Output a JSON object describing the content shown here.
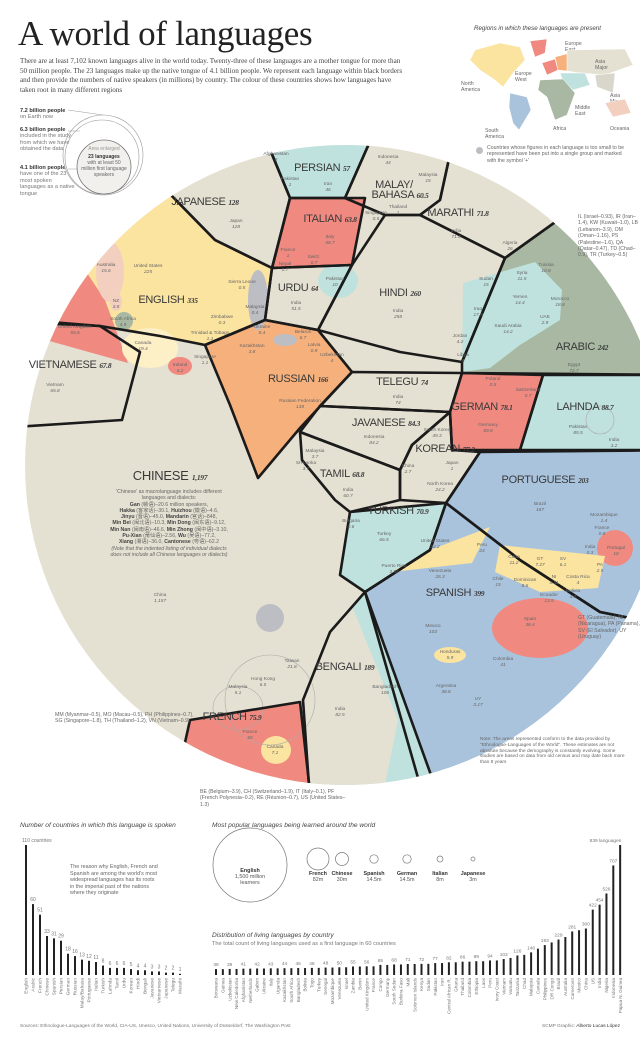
{
  "header": {
    "title": "A world of languages",
    "intro": "There are at least 7,102 known languages alive in the world today. Twenty-three of these languages are a mother tongue for more than 50 million people. The 23 languages make up the native tongue of 4.1 billion people. We represent each language within black borders and then provide the numbers of native speakers (in millions) by country. The colour of these countries shows how languages have taken root in many different regions"
  },
  "key": {
    "items": [
      {
        "bold": "7.2 billion people",
        "text": "on Earth now"
      },
      {
        "bold": "6.3 billion people",
        "text": "included in the study from which we have obtained the data"
      },
      {
        "bold": "4.1 billion people",
        "text": "have one of the 23 most spoken languages as a native tongue"
      }
    ],
    "enlarged": "Area enlarged",
    "inner_bold": "23 languages",
    "inner_text": "with at least 50 million first language speakers"
  },
  "map": {
    "title": "Regions in which these languages are present",
    "regions": [
      {
        "name": "North America",
        "color": "#fbe3a0"
      },
      {
        "name": "Europe West",
        "color": "#f08a80"
      },
      {
        "name": "Europe East",
        "color": "#f6b07c"
      },
      {
        "name": "Asia Major",
        "color": "#e5e1d2"
      },
      {
        "name": "Asia Minor",
        "color": "#d9d6cb"
      },
      {
        "name": "Middle East",
        "color": "#bfe2de"
      },
      {
        "name": "Africa",
        "color": "#a8b8a2"
      },
      {
        "name": "South America",
        "color": "#a9c3dd"
      },
      {
        "name": "Oceania",
        "color": "#f3cfc0"
      }
    ],
    "legend_note": "Countries whose figures in each language is too small to be represented have been put into a single group and marked with the symbol '+'",
    "small_group_color": "#bdbdc4"
  },
  "circle": {
    "languages": [
      {
        "name": "PERSIAN",
        "total": "57",
        "region": "Middle East",
        "countries": [
          {
            "name": "Afghanistan",
            "value": "8"
          },
          {
            "name": "Pakistan",
            "value": "1"
          },
          {
            "name": "Iran",
            "value": "46"
          }
        ]
      },
      {
        "name": "MALAY/BAHASA",
        "total": "60.5",
        "region": "Asia Major",
        "countries": [
          {
            "name": "Indonesia",
            "value": "44"
          },
          {
            "name": "Malaysia",
            "value": "15"
          },
          {
            "name": "Thailand",
            "value": "1"
          },
          {
            "name": "Singapore",
            "value": "0.5"
          }
        ]
      },
      {
        "name": "JAPANESE",
        "total": "128",
        "region": "Asia Major",
        "countries": [
          {
            "name": "Japan",
            "value": "128"
          }
        ]
      },
      {
        "name": "ITALIAN",
        "total": "63.8",
        "region": "Europe West",
        "countries": [
          {
            "name": "Italy",
            "value": "58.7"
          },
          {
            "name": "France",
            "value": "1"
          },
          {
            "name": "Switz.",
            "value": "0.7"
          }
        ]
      },
      {
        "name": "MARATHI",
        "total": "71.8",
        "region": "Asia Major",
        "countries": [
          {
            "name": "India",
            "value": "71.8"
          }
        ]
      },
      {
        "name": "ENGLISH",
        "total": "335",
        "region": "North America",
        "countries": [
          {
            "name": "United States",
            "value": "225"
          },
          {
            "name": "Australia",
            "value": "15.6"
          },
          {
            "name": "NZ",
            "value": "3.8"
          },
          {
            "name": "United Kingdom",
            "value": "55.6"
          },
          {
            "name": "South Africa",
            "value": "4.9"
          },
          {
            "name": "Canada",
            "value": "19.4"
          },
          {
            "name": "Ireland",
            "value": "4.2"
          },
          {
            "name": "Singapore",
            "value": "1.1"
          },
          {
            "name": "Sierra Leone",
            "value": "0.5"
          },
          {
            "name": "Malaysia",
            "value": "0.4"
          },
          {
            "name": "Zimbabwe",
            "value": "0.3"
          },
          {
            "name": "Trinidad & Tobago",
            "value": "1.1"
          }
        ]
      },
      {
        "name": "URDU",
        "total": "64",
        "region": "Asia Major",
        "countries": [
          {
            "name": "Nepal",
            "value": "0.7"
          },
          {
            "name": "Pakistan",
            "value": "10"
          },
          {
            "name": "India",
            "value": "51.5"
          }
        ]
      },
      {
        "name": "HINDI",
        "total": "260",
        "region": "Asia Major",
        "countries": [
          {
            "name": "India",
            "value": "258"
          }
        ]
      },
      {
        "name": "ARABIC",
        "total": "242",
        "region": "Africa",
        "countries": [
          {
            "name": "Algeria",
            "value": "26"
          },
          {
            "name": "Tunisia",
            "value": "10.8"
          },
          {
            "name": "Sudan",
            "value": "15"
          },
          {
            "name": "Syria",
            "value": "11.5"
          },
          {
            "name": "Morocco",
            "value": "18.8"
          },
          {
            "name": "Yemen",
            "value": "14.4"
          },
          {
            "name": "Iraq",
            "value": "17.9"
          },
          {
            "name": "UAE",
            "value": "2.9"
          },
          {
            "name": "Saudi Arabia",
            "value": "14.2"
          },
          {
            "name": "Jordan",
            "value": "4.2"
          },
          {
            "name": "Libya",
            "value": "4"
          },
          {
            "name": "Egypt",
            "value": "72.7"
          }
        ]
      },
      {
        "name": "VIETNAMESE",
        "total": "67.8",
        "region": "Asia Major",
        "countries": [
          {
            "name": "Vietnam",
            "value": "65.8"
          }
        ]
      },
      {
        "name": "RUSSIAN",
        "total": "166",
        "region": "Europe East",
        "countries": [
          {
            "name": "Ukraine",
            "value": "8.4"
          },
          {
            "name": "Belarus",
            "value": "6.7"
          },
          {
            "name": "Kazakhstan",
            "value": "3.8"
          },
          {
            "name": "Latvia",
            "value": "0.9"
          },
          {
            "name": "Uzbekistan",
            "value": "4"
          },
          {
            "name": "Russian Federation",
            "value": "138"
          }
        ]
      },
      {
        "name": "TELEGU",
        "total": "74",
        "region": "Asia Major",
        "countries": [
          {
            "name": "India",
            "value": "74"
          }
        ]
      },
      {
        "name": "GERMAN",
        "total": "78.1",
        "region": "Europe West",
        "countries": [
          {
            "name": "Germany",
            "value": "69.8"
          },
          {
            "name": "Poland",
            "value": "0.5"
          },
          {
            "name": "Switzerland",
            "value": "0.7"
          }
        ]
      },
      {
        "name": "LAHNDA",
        "total": "88.7",
        "region": "Middle East",
        "countries": [
          {
            "name": "Pakistan",
            "value": "85.5"
          },
          {
            "name": "India",
            "value": "3.2"
          }
        ]
      },
      {
        "name": "JAVANESE",
        "total": "84.3",
        "region": "Asia Major",
        "countries": [
          {
            "name": "Indonesia",
            "value": "84.2"
          }
        ]
      },
      {
        "name": "KOREAN",
        "total": "77.2",
        "region": "Asia Major",
        "countries": [
          {
            "name": "South Korea",
            "value": "49.3"
          },
          {
            "name": "China",
            "value": "2.7"
          },
          {
            "name": "Japan",
            "value": "1"
          },
          {
            "name": "North Korea",
            "value": "24.2"
          }
        ]
      },
      {
        "name": "TAMIL",
        "total": "68.8",
        "region": "Asia Major",
        "countries": [
          {
            "name": "India",
            "value": "60.7"
          },
          {
            "name": "Malaysia",
            "value": "3.7"
          },
          {
            "name": "Sri Lanka",
            "value": "3.7"
          }
        ]
      },
      {
        "name": "PORTUGUESE",
        "total": "203",
        "region": "South America",
        "countries": [
          {
            "name": "Brazil",
            "value": "187"
          },
          {
            "name": "Mozambique",
            "value": "1.4"
          },
          {
            "name": "France",
            "value": "0.8"
          },
          {
            "name": "India",
            "value": "0.3"
          },
          {
            "name": "Portugal",
            "value": "10"
          }
        ]
      },
      {
        "name": "TURKISH",
        "total": "70.9",
        "region": "Middle East",
        "countries": [
          {
            "name": "Turkey",
            "value": "66.5"
          },
          {
            "name": "Bulgaria",
            "value": "0.6"
          }
        ]
      },
      {
        "name": "SPANISH",
        "total": "399",
        "region": "South America",
        "countries": [
          {
            "name": "United States",
            "value": "34.2"
          },
          {
            "name": "Peru",
            "value": "24"
          },
          {
            "name": "Venezuela",
            "value": "26.3"
          },
          {
            "name": "Chile",
            "value": "15"
          },
          {
            "name": "Cuba",
            "value": "11.2"
          },
          {
            "name": "GT",
            "value": "7.27"
          },
          {
            "name": "SV",
            "value": "6.1"
          },
          {
            "name": "Dominican",
            "value": "8.6"
          },
          {
            "name": "NI",
            "value": "5.31"
          },
          {
            "name": "Costa Rica",
            "value": "4"
          },
          {
            "name": "PA",
            "value": "2.5"
          },
          {
            "name": "Bolivia",
            "value": "4.2"
          },
          {
            "name": "Ecuador",
            "value": "13.5"
          },
          {
            "name": "Spain",
            "value": "38.4"
          },
          {
            "name": "Puerto Rico",
            "value": "3.54"
          },
          {
            "name": "Mexico",
            "value": "103"
          },
          {
            "name": "Honduras",
            "value": "5.9"
          },
          {
            "name": "Colombia",
            "value": "41"
          },
          {
            "name": "Argentina",
            "value": "38.8"
          },
          {
            "name": "UY",
            "value": "3.17"
          }
        ]
      },
      {
        "name": "BENGALI",
        "total": "189",
        "region": "Middle East",
        "countries": [
          {
            "name": "Bangladesh",
            "value": "106"
          },
          {
            "name": "India",
            "value": "82.5"
          }
        ]
      },
      {
        "name": "FRENCH",
        "total": "75.9",
        "region": "Europe West",
        "countries": [
          {
            "name": "France",
            "value": "60"
          },
          {
            "name": "Canada",
            "value": "7.1"
          }
        ]
      },
      {
        "name": "CHINESE",
        "total": "1,197",
        "region": "Asia Major",
        "countries": [
          {
            "name": "China",
            "value": "1,157"
          },
          {
            "name": "Taiwan",
            "value": "21.8"
          },
          {
            "name": "Hong Kong",
            "value": "6.5"
          },
          {
            "name": "Malaysia",
            "value": "5.1"
          }
        ]
      }
    ],
    "chinese_note": [
      {
        "t": "'Chinese' as macrolanguage includes different languages and dialects:"
      },
      {
        "b": "Gan",
        "t": " (赣语)–20.6 million speakers,"
      },
      {
        "b": "Hakka",
        "t": " (客家话)–30.1, ",
        "b2": "Huizhou",
        "t2": " (徽语)–4.6,"
      },
      {
        "b": "Jinyu",
        "t": " (晋语)–45.0, ",
        "b2": "Mandarin",
        "t2": " (官话)–848,"
      },
      {
        "b": "Min Bei",
        "t": " (闽北语)–10.3, ",
        "b2": "Min Dong",
        "t2": " (闽东语)–9.12,"
      },
      {
        "b": "Min Nan",
        "t": " (闽南语)–46.6, ",
        "b2": "Min Zhong",
        "t2": " (闽中语)–3.10,"
      },
      {
        "b": "Pu-Xian",
        "t": " (莆仙语)–2.56, ",
        "b2": "Wu",
        "t2": " (吴语)–77.2,"
      },
      {
        "b": "Xiang",
        "t": " (湘语)–36.0, ",
        "b2": "Cantonese",
        "t2": " (粤语)–62.2"
      },
      {
        "i": "(Note that the indented listing of individual dialects does not include all Chinese languages or dialects)"
      }
    ],
    "footnotes": {
      "arabic": "IL (Israel–0.93), IR (Iran–1.4), KW (Kuwait–1.0), LB (Lebanon–3.9), OM (Oman–1.16), PS (Palestine–1.6), QA (Qatar–0.47), TD (Chad–0.9), TR (Turkey–0.5)",
      "spanish": "GT (Guatemala), NI (Nicaragua), PA (Panama), SV (El Salvador), UY (Uruguay)",
      "chinese": "MM (Myanmar–0.5), MO (Macau–0.5), PH (Philippines–0.7), SG (Singapore–1.8), TH (Thailand–1.2), VN (Vietnam–0.9)",
      "french": "BE (Belgium–3.9), CH (Switzerland–1.9), IT (Italy–0.1), PF (French Polynesia–0.2), RE (Réunion–0.7), US (United States–1.3)",
      "method": "Note: The areas represented conform to the data provided by \"Ethnologue-Languages of the World\". These estimates are not absolute because the demography is constantly evolving. Some studies are based on data from old census and may date back more than 8 years"
    }
  },
  "chart_data": [
    {
      "type": "bar",
      "title": "Number of countries in which this language is spoken",
      "top_label": "110 countries",
      "annotation": "The reason why English, French and Spanish are among the world's most widespread languages has its roots in the imperial past of the nations where they originate",
      "categories": [
        "English",
        "Arabic",
        "French",
        "Chinese",
        "Spanish",
        "Persian",
        "German",
        "Russian",
        "Malay/Bahasa",
        "Portuguese",
        "Italian",
        "Turkish",
        "Lahnda",
        "Tamil",
        "Urdu",
        "Korean",
        "Hindi",
        "Bengali",
        "Javanese",
        "Vietnamese",
        "Japanese",
        "Telegu",
        "Marathi"
      ],
      "values": [
        110,
        60,
        51,
        33,
        31,
        29,
        18,
        16,
        13,
        12,
        11,
        8,
        6,
        6,
        6,
        5,
        4,
        4,
        3,
        3,
        2,
        2,
        1
      ],
      "ylim": [
        0,
        110
      ]
    },
    {
      "type": "bubble",
      "title": "Most popular languages being learned around the world",
      "categories": [
        "English",
        "French",
        "Chinese",
        "Spanish",
        "German",
        "Italian",
        "Japanese"
      ],
      "labels": [
        "1,500 million learners",
        "82m",
        "30m",
        "14.5m",
        "14.5m",
        "8m",
        "3m"
      ],
      "values": [
        1500,
        82,
        30,
        14.5,
        14.5,
        8,
        3
      ],
      "unit": "million learners"
    },
    {
      "type": "bar",
      "title": "Distribution of living languages by country",
      "subtitle": "The total count of living languages used as a first language in 60 countries",
      "top_label": "839 languages",
      "categories": [
        "Botswana",
        "Guinea",
        "Uzbekistan",
        "New Caledonia",
        "Afghanistan",
        "Netherlands",
        "Gabon",
        "Ukraine",
        "Italy",
        "Uganda",
        "Kazakhstan",
        "South Africa",
        "Bangladesh",
        "Bolivia",
        "Togo",
        "Turkey",
        "Senegal",
        "Mozambique",
        "Venezuela",
        "Israel",
        "Zambia",
        "Benin",
        "United Kingdom",
        "France",
        "Congo",
        "Germany",
        "South Sudan",
        "Burkina Faso",
        "Mali",
        "Solomon Islands",
        "Kenya",
        "Sudan",
        "Pakistan",
        "Iran",
        "Central African R.",
        "Ghana",
        "Thailand",
        "Colombia",
        "Ethiopia",
        "Laos",
        "Peru",
        "Ivory Coast",
        "Vietnam",
        "Vanuatu",
        "Tanzania",
        "Chad",
        "Malaysia",
        "Canada",
        "Philippines",
        "DR Congo",
        "Brazil",
        "Australia",
        "Cameroon",
        "Mexico",
        "China",
        "US",
        "India",
        "Nigeria",
        "Indonesia",
        "Papua N. Guinea"
      ],
      "values": [
        38,
        38,
        39,
        39,
        41,
        41,
        42,
        42,
        43,
        43,
        44,
        44,
        45,
        45,
        46,
        46,
        48,
        48,
        50,
        50,
        55,
        55,
        56,
        56,
        65,
        65,
        68,
        68,
        71,
        71,
        72,
        72,
        77,
        77,
        82,
        82,
        86,
        86,
        89,
        89,
        94,
        94,
        103,
        110,
        126,
        130,
        146,
        170,
        193,
        210,
        229,
        245,
        281,
        289,
        300,
        422,
        454,
        526,
        707,
        839
      ],
      "ylim": [
        0,
        839
      ]
    }
  ],
  "footer": {
    "sources": "Sources: Ethnologue-Languages of the World, CIA-US, Unesco, United Nations, University of Düsseldorf, The Washington Post",
    "credit_label": "SCMP Graphic:",
    "credit_name": "Alberto Lucas López"
  }
}
